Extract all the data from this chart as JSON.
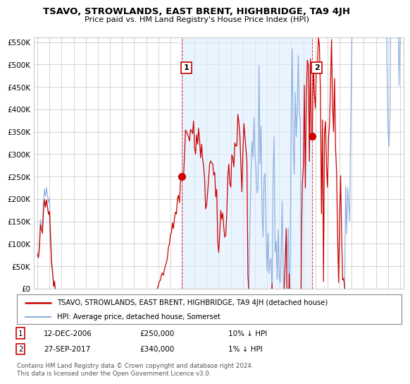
{
  "title": "TSAVO, STROWLANDS, EAST BRENT, HIGHBRIDGE, TA9 4JH",
  "subtitle": "Price paid vs. HM Land Registry's House Price Index (HPI)",
  "ylim": [
    0,
    560000
  ],
  "yticks": [
    0,
    50000,
    100000,
    150000,
    200000,
    250000,
    300000,
    350000,
    400000,
    450000,
    500000,
    550000
  ],
  "ytick_labels": [
    "£0",
    "£50K",
    "£100K",
    "£150K",
    "£200K",
    "£250K",
    "£300K",
    "£350K",
    "£400K",
    "£450K",
    "£500K",
    "£550K"
  ],
  "xlim_start": 1994.7,
  "xlim_end": 2025.3,
  "xticks": [
    1995,
    1996,
    1997,
    1998,
    1999,
    2000,
    2001,
    2002,
    2003,
    2004,
    2005,
    2006,
    2007,
    2008,
    2009,
    2010,
    2011,
    2012,
    2013,
    2014,
    2015,
    2016,
    2017,
    2018,
    2019,
    2020,
    2021,
    2022,
    2023,
    2024,
    2025
  ],
  "background_color": "#ffffff",
  "grid_color": "#cccccc",
  "house_color": "#cc0000",
  "hpi_color": "#88aadd",
  "shade_color": "#ddeeff",
  "purchase1_x": 2006.95,
  "purchase1_y": 250000,
  "purchase2_x": 2017.73,
  "purchase2_y": 340000,
  "legend_house": "TSAVO, STROWLANDS, EAST BRENT, HIGHBRIDGE, TA9 4JH (detached house)",
  "legend_hpi": "HPI: Average price, detached house, Somerset",
  "footer3": "Contains HM Land Registry data © Crown copyright and database right 2024.",
  "footer4": "This data is licensed under the Open Government Licence v3.0."
}
